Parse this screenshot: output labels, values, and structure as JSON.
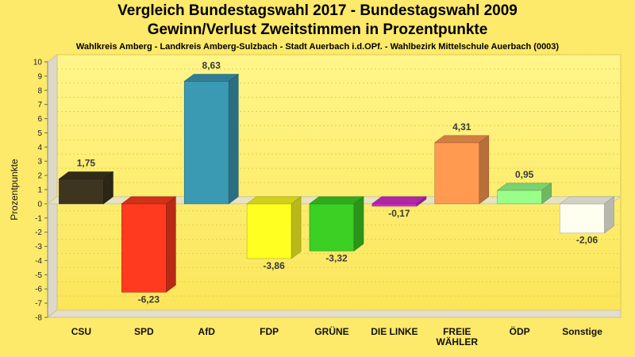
{
  "chart_data": {
    "type": "bar",
    "title": "Vergleich Bundestagswahl 2017 - Bundestagswahl 2009",
    "subtitle": "Gewinn/Verlust Zweitstimmen in Prozentpunkte",
    "caption": "Wahlkreis Amberg - Landkreis Amberg-Sulzbach - Stadt Auerbach i.d.OPf. - Wahlbezirk Mittelschule Auerbach (0003)",
    "ylabel": "Prozentpunkte",
    "xlabel": "",
    "ylim": [
      -8,
      10
    ],
    "yticks": [
      "-8",
      "-7",
      "-6",
      "-5",
      "-4",
      "-3",
      "-2",
      "-1",
      "0",
      "1",
      "2",
      "3",
      "4",
      "5",
      "6",
      "7",
      "8",
      "9",
      "10"
    ],
    "categories": [
      "CSU",
      "SPD",
      "AfD",
      "FDP",
      "GRÜNE",
      "DIE LINKE",
      "FREIE WÄHLER",
      "ÖDP",
      "Sonstige"
    ],
    "values": [
      1.75,
      -6.23,
      8.63,
      -3.86,
      -3.32,
      -0.17,
      4.31,
      0.95,
      -2.06
    ],
    "value_labels": [
      "1,75",
      "-6,23",
      "8,63",
      "-3,86",
      "-3,32",
      "-0,17",
      "4,31",
      "0,95",
      "-2,06"
    ],
    "colors": [
      "#3d3520",
      "#ff3a1f",
      "#3b9ab3",
      "#ffff22",
      "#3ccf24",
      "#d42fc8",
      "#ff9a50",
      "#99ff88",
      "#fffff0"
    ],
    "grid": true,
    "legend": "none"
  }
}
